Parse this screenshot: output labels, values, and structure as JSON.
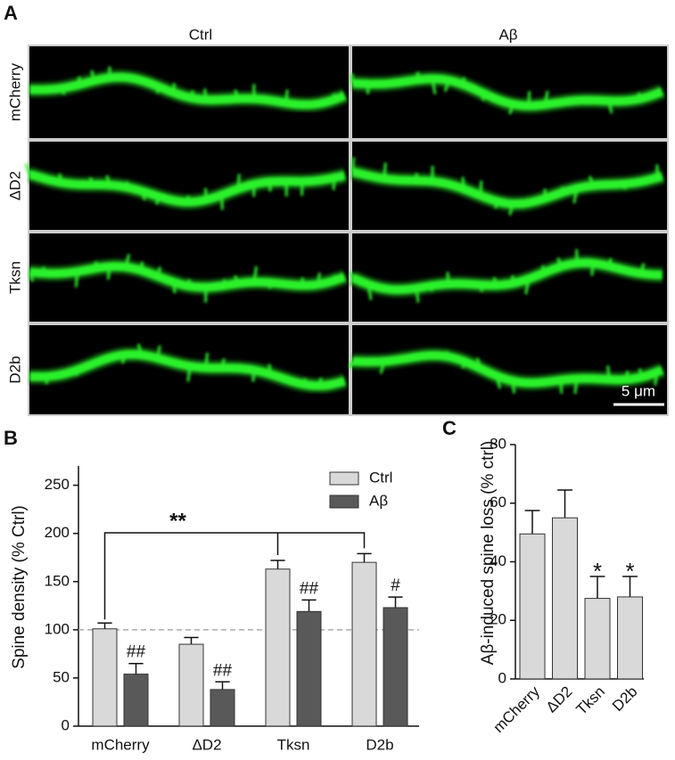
{
  "panel_a": {
    "label": "A",
    "columns": [
      "Ctrl",
      "Aβ"
    ],
    "rows": [
      "mCherry",
      "ΔD2",
      "Tksn",
      "D2b"
    ],
    "scale_bar": "5 μm"
  },
  "chart_data": [
    {
      "type": "bar",
      "label": "B",
      "ylabel": "Spine density (% Ctrl)",
      "categories": [
        "mCherry",
        "ΔD2",
        "Tksn",
        "D2b"
      ],
      "series": [
        {
          "name": "Ctrl",
          "color": "#d9d9d9",
          "values": [
            101,
            85,
            163,
            170
          ],
          "errors": [
            6,
            7,
            9,
            9
          ]
        },
        {
          "name": "Aβ",
          "color": "#595959",
          "values": [
            54,
            38,
            119,
            123
          ],
          "errors": [
            11,
            8,
            12,
            11
          ],
          "significance": [
            "##",
            "##",
            "##",
            "#"
          ]
        }
      ],
      "annotation": "**",
      "reference_line": 100,
      "ylim": [
        0,
        270
      ],
      "yticks": [
        0,
        50,
        100,
        150,
        200,
        250
      ],
      "legend": "top-right"
    },
    {
      "type": "bar",
      "label": "C",
      "ylabel": "Aβ-induced spine loss (% ctrl)",
      "categories": [
        "mCherry",
        "ΔD2",
        "Tksn",
        "D2b"
      ],
      "values": [
        49.5,
        55,
        27.5,
        28
      ],
      "errors": [
        8,
        9.5,
        7.5,
        7
      ],
      "color": "#d9d9d9",
      "significance": [
        null,
        null,
        "*",
        "*"
      ],
      "ylim": [
        0,
        80
      ],
      "yticks": [
        0,
        20,
        40,
        60,
        80
      ]
    }
  ]
}
